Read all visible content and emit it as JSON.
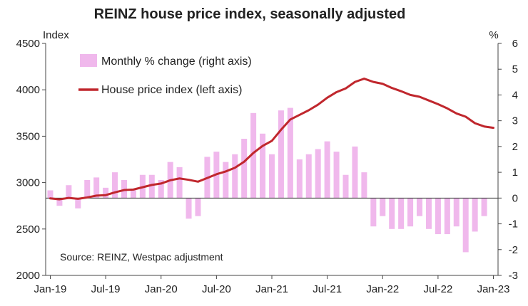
{
  "chart_data": {
    "type": "bar+line",
    "title": "REINZ house price index, seasonally adjusted",
    "left_axis_unit": "Index",
    "right_axis_unit": "%",
    "ylim_left": [
      2000,
      4500
    ],
    "yticks_left": [
      "2000",
      "2500",
      "3000",
      "3500",
      "4000",
      "4500"
    ],
    "ylim_right": [
      -3,
      6
    ],
    "yticks_right": [
      "-3",
      "-2",
      "-1",
      "0",
      "1",
      "2",
      "3",
      "4",
      "5",
      "6"
    ],
    "x_tick_labels": [
      "Jan-19",
      "Jul-19",
      "Jan-20",
      "Jul-20",
      "Jan-21",
      "Jul-21",
      "Jan-22",
      "Jul-22",
      "Jan-23"
    ],
    "months": [
      "Jan-19",
      "Feb-19",
      "Mar-19",
      "Apr-19",
      "May-19",
      "Jun-19",
      "Jul-19",
      "Aug-19",
      "Sep-19",
      "Oct-19",
      "Nov-19",
      "Dec-19",
      "Jan-20",
      "Feb-20",
      "Mar-20",
      "Apr-20",
      "May-20",
      "Jun-20",
      "Jul-20",
      "Aug-20",
      "Sep-20",
      "Oct-20",
      "Nov-20",
      "Dec-20",
      "Jan-21",
      "Feb-21",
      "Mar-21",
      "Apr-21",
      "May-21",
      "Jun-21",
      "Jul-21",
      "Aug-21",
      "Sep-21",
      "Oct-21",
      "Nov-21",
      "Dec-21",
      "Jan-22",
      "Feb-22",
      "Mar-22",
      "Apr-22",
      "May-22",
      "Jun-22",
      "Jul-22",
      "Aug-22",
      "Sep-22",
      "Oct-22",
      "Nov-22",
      "Dec-22",
      "Jan-23"
    ],
    "series": [
      {
        "name": "Monthly % change (right axis)",
        "type": "bar",
        "color": "#f0b8ec",
        "values": [
          0.3,
          -0.3,
          0.5,
          -0.4,
          0.7,
          0.8,
          0.4,
          1.0,
          0.7,
          0.3,
          0.9,
          0.9,
          0.7,
          1.4,
          1.2,
          -0.8,
          -0.7,
          1.6,
          1.8,
          1.4,
          1.7,
          2.3,
          3.3,
          2.5,
          1.7,
          3.4,
          3.5,
          1.5,
          1.7,
          1.9,
          2.2,
          1.8,
          0.9,
          2.0,
          1.0,
          -1.1,
          -0.7,
          -1.2,
          -1.2,
          -1.1,
          -0.7,
          -1.2,
          -1.4,
          -1.4,
          -1.1,
          -2.1,
          -1.3,
          -0.7,
          0
        ]
      },
      {
        "name": "House price index (left axis)",
        "type": "line",
        "color": "#c0272d",
        "values": [
          2830,
          2820,
          2835,
          2825,
          2840,
          2860,
          2865,
          2895,
          2920,
          2925,
          2950,
          2975,
          2990,
          3025,
          3045,
          3030,
          3010,
          3050,
          3090,
          3120,
          3160,
          3225,
          3320,
          3395,
          3450,
          3570,
          3680,
          3730,
          3780,
          3840,
          3915,
          3975,
          4015,
          4085,
          4120,
          4085,
          4065,
          4020,
          3985,
          3945,
          3925,
          3885,
          3845,
          3800,
          3745,
          3710,
          3640,
          3605,
          3590
        ]
      }
    ],
    "annotations": [
      "Source: REINZ, Westpac adjustment"
    ],
    "legend_position": "top-left",
    "grid": false
  }
}
